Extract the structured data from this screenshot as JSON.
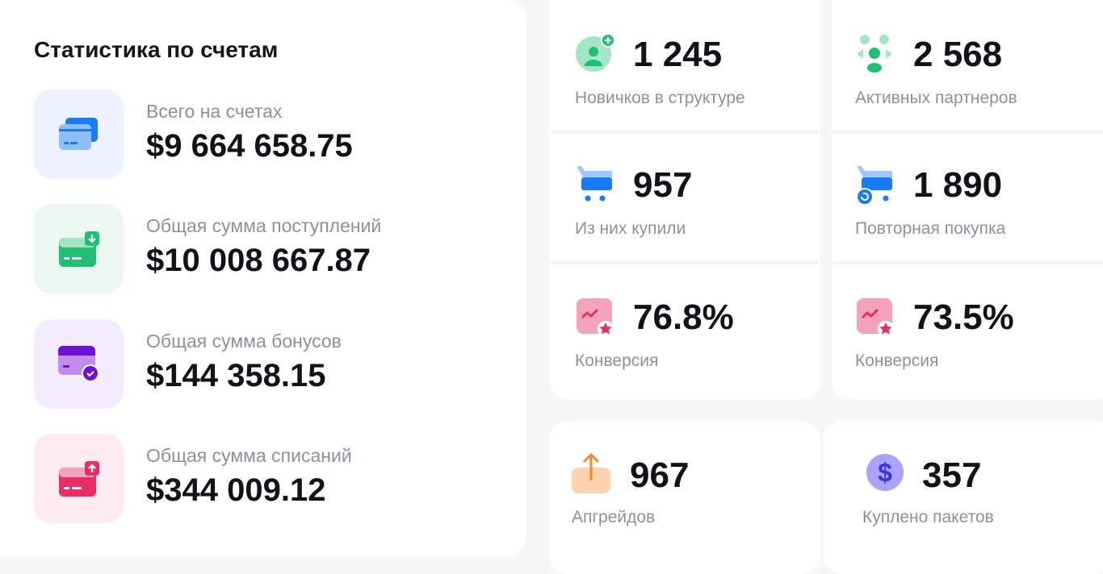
{
  "accounts": {
    "title": "Статистика по счетам",
    "items": [
      {
        "label": "Всего на счетах",
        "value": "$9 664 658.75",
        "icon": "cards-icon",
        "bg": "#eef2fe"
      },
      {
        "label": "Общая сумма поступлений",
        "value": "$10 008 667.87",
        "icon": "card-incoming-icon",
        "bg": "#ebf8f1"
      },
      {
        "label": "Общая сумма бонусов",
        "value": "$144 358.15",
        "icon": "card-check-icon",
        "bg": "#f3ecfd"
      },
      {
        "label": "Общая сумма списаний",
        "value": "$344 009.12",
        "icon": "card-outgoing-icon",
        "bg": "#fdebf1"
      }
    ]
  },
  "stats": [
    {
      "value": "1 245",
      "label": "Новичков в структуре",
      "icon": "user-add-icon"
    },
    {
      "value": "2 568",
      "label": "Активных партнеров",
      "icon": "group-icon"
    },
    {
      "value": "957",
      "label": "Из них купили",
      "icon": "cart-icon"
    },
    {
      "value": "1 890",
      "label": "Повторная покупка",
      "icon": "cart-repeat-icon"
    },
    {
      "value": "76.8%",
      "label": "Конверсия",
      "icon": "conversion-icon"
    },
    {
      "value": "73.5%",
      "label": "Конверсия",
      "icon": "conversion-icon"
    },
    {
      "value": "967",
      "label": "Апгрейдов",
      "icon": "upgrade-icon"
    },
    {
      "value": "357",
      "label": "Куплено пакетов",
      "icon": "dollar-icon"
    }
  ],
  "colors": {
    "blue": "#1a7cf5",
    "green": "#1fbf75",
    "purple": "#7010d8",
    "pink": "#e92d65",
    "orange": "#f5862e",
    "indigo": "#3d2ff0"
  }
}
